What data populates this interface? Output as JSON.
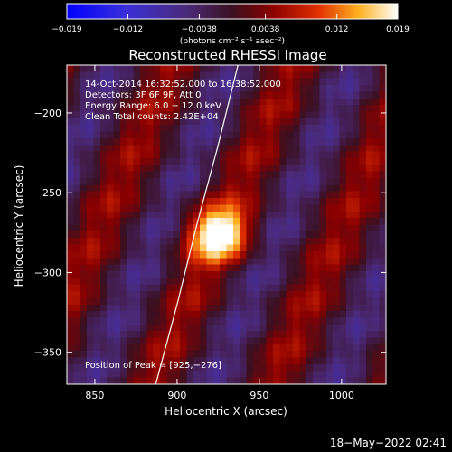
{
  "chart_data": {
    "type": "heatmap",
    "title": "Reconstructed RHESSI Image",
    "xlabel": "Heliocentric X (arcsec)",
    "ylabel": "Heliocentric Y (arcsec)",
    "xlim": [
      833,
      1027
    ],
    "ylim": [
      -370,
      -170
    ],
    "x_ticks": [
      850,
      900,
      950,
      1000
    ],
    "y_ticks": [
      -200,
      -250,
      -300,
      -350
    ],
    "colorbar": {
      "range": [
        -0.019,
        0.019
      ],
      "ticks": [
        -0.019,
        -0.012,
        -0.0038,
        0.0038,
        0.012,
        0.019
      ],
      "tick_labels": [
        "−0.019",
        "−0.012",
        "−0.0038",
        "0.0038",
        "0.012",
        "0.019"
      ],
      "label": "(photons cm⁻² s⁻¹ asec⁻²)"
    },
    "annotations": [
      "14-Oct-2014 16:32:52.000 to 16:38:52.000",
      "Detectors: 3F 6F 9F, Att 0",
      "Energy Range: 6.0 − 12.0 keV",
      "Clean     Total counts: 2.42E+04"
    ],
    "peak_label": "Position of Peak = [925,−276]",
    "peak": [
      925,
      -276
    ],
    "limb_curve": [
      [
        887,
        -370
      ],
      [
        900,
        -320
      ],
      [
        912,
        -270
      ],
      [
        925,
        -220
      ],
      [
        937,
        -170
      ]
    ]
  },
  "footer": {
    "timestamp": "18−May−2022 02:41"
  }
}
